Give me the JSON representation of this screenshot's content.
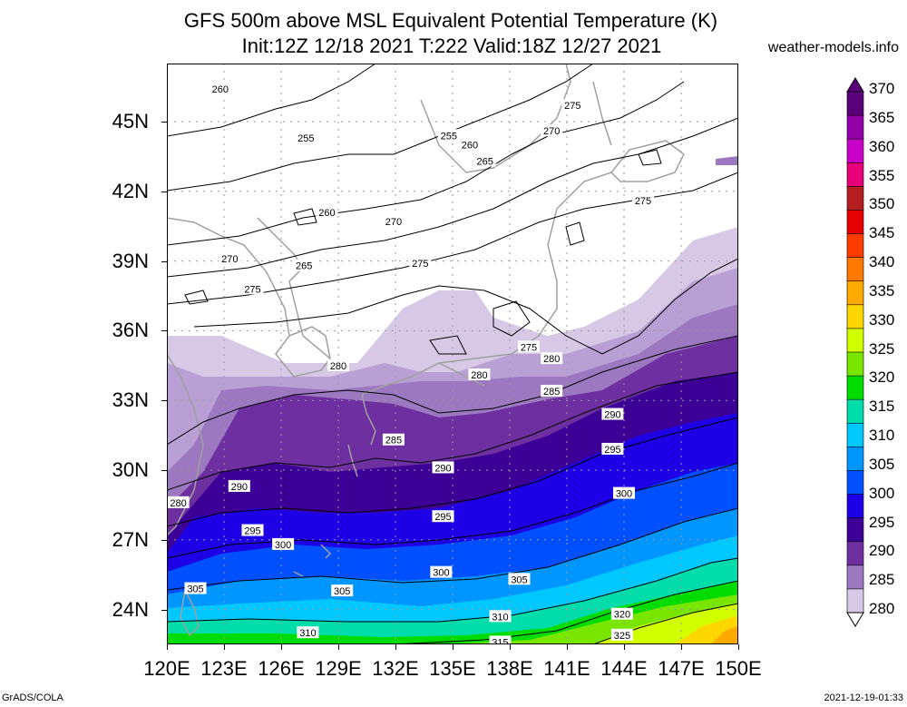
{
  "title": {
    "line1": "GFS 500m above MSL Equivalent Potential Temperature (K)",
    "line2": "Init:12Z 12/18 2021 T:222 Valid:18Z 12/27 2021"
  },
  "site": "weather-models.info",
  "footer": {
    "left": "GrADS/COLA",
    "right": "2021-12-19-01:33"
  },
  "map": {
    "region": "Japan / Northwest Pacific",
    "lon_range": [
      120,
      150
    ],
    "lat_range": [
      22.5,
      47.5
    ],
    "lat_ticks": [
      {
        "v": 45,
        "label": "45N"
      },
      {
        "v": 42,
        "label": "42N"
      },
      {
        "v": 39,
        "label": "39N"
      },
      {
        "v": 36,
        "label": "36N"
      },
      {
        "v": 33,
        "label": "33N"
      },
      {
        "v": 30,
        "label": "30N"
      },
      {
        "v": 27,
        "label": "27N"
      },
      {
        "v": 24,
        "label": "24N"
      }
    ],
    "lon_ticks": [
      {
        "v": 120,
        "label": "120E"
      },
      {
        "v": 123,
        "label": "123E"
      },
      {
        "v": 126,
        "label": "126E"
      },
      {
        "v": 129,
        "label": "129E"
      },
      {
        "v": 132,
        "label": "132E"
      },
      {
        "v": 135,
        "label": "135E"
      },
      {
        "v": 138,
        "label": "138E"
      },
      {
        "v": 141,
        "label": "141E"
      },
      {
        "v": 144,
        "label": "144E"
      },
      {
        "v": 147,
        "label": "147E"
      },
      {
        "v": 150,
        "label": "150E"
      }
    ],
    "contour_labels": [
      {
        "text": "260",
        "lon": 122.8,
        "lat": 46.4
      },
      {
        "text": "255",
        "lon": 127.3,
        "lat": 44.3
      },
      {
        "text": "255",
        "lon": 134.8,
        "lat": 44.4
      },
      {
        "text": "260",
        "lon": 135.9,
        "lat": 44.0
      },
      {
        "text": "265",
        "lon": 136.7,
        "lat": 43.3
      },
      {
        "text": "270",
        "lon": 140.2,
        "lat": 44.6
      },
      {
        "text": "275",
        "lon": 141.3,
        "lat": 45.7
      },
      {
        "text": "275",
        "lon": 145.0,
        "lat": 41.6
      },
      {
        "text": "260",
        "lon": 128.4,
        "lat": 41.1
      },
      {
        "text": "270",
        "lon": 131.9,
        "lat": 40.7
      },
      {
        "text": "275",
        "lon": 133.3,
        "lat": 38.9
      },
      {
        "text": "265",
        "lon": 127.2,
        "lat": 38.8
      },
      {
        "text": "270",
        "lon": 123.3,
        "lat": 39.1
      },
      {
        "text": "275",
        "lon": 124.5,
        "lat": 37.8
      },
      {
        "text": "280",
        "lon": 129.0,
        "lat": 34.5
      },
      {
        "text": "280",
        "lon": 136.4,
        "lat": 34.1
      },
      {
        "text": "275",
        "lon": 139.0,
        "lat": 35.3
      },
      {
        "text": "280",
        "lon": 140.2,
        "lat": 34.8
      },
      {
        "text": "285",
        "lon": 140.2,
        "lat": 33.4
      },
      {
        "text": "290",
        "lon": 143.4,
        "lat": 32.4
      },
      {
        "text": "295",
        "lon": 143.4,
        "lat": 30.9
      },
      {
        "text": "300",
        "lon": 144.0,
        "lat": 29.0
      },
      {
        "text": "285",
        "lon": 131.9,
        "lat": 31.3
      },
      {
        "text": "290",
        "lon": 134.5,
        "lat": 30.1
      },
      {
        "text": "290",
        "lon": 123.8,
        "lat": 29.3
      },
      {
        "text": "295",
        "lon": 134.5,
        "lat": 28.0
      },
      {
        "text": "295",
        "lon": 124.5,
        "lat": 27.4
      },
      {
        "text": "300",
        "lon": 126.1,
        "lat": 26.8
      },
      {
        "text": "300",
        "lon": 134.4,
        "lat": 25.6
      },
      {
        "text": "305",
        "lon": 121.5,
        "lat": 24.9
      },
      {
        "text": "305",
        "lon": 129.2,
        "lat": 24.8
      },
      {
        "text": "305",
        "lon": 138.5,
        "lat": 25.3
      },
      {
        "text": "310",
        "lon": 127.4,
        "lat": 23.0
      },
      {
        "text": "310",
        "lon": 137.5,
        "lat": 23.7
      },
      {
        "text": "320",
        "lon": 143.9,
        "lat": 23.8
      },
      {
        "text": "325",
        "lon": 143.9,
        "lat": 22.9
      },
      {
        "text": "315",
        "lon": 137.5,
        "lat": 22.6
      },
      {
        "text": "280",
        "lon": 120.6,
        "lat": 28.6
      }
    ]
  },
  "colorbar": {
    "levels": [
      {
        "value": "370",
        "color": "#5a007a"
      },
      {
        "value": "365",
        "color": "#9300a8"
      },
      {
        "value": "360",
        "color": "#c800c8"
      },
      {
        "value": "355",
        "color": "#e6007a"
      },
      {
        "value": "350",
        "color": "#b41e1e"
      },
      {
        "value": "345",
        "color": "#e60000"
      },
      {
        "value": "340",
        "color": "#ff3c00"
      },
      {
        "value": "335",
        "color": "#ff7800"
      },
      {
        "value": "330",
        "color": "#ffaa00"
      },
      {
        "value": "325",
        "color": "#ffd700"
      },
      {
        "value": "320",
        "color": "#d2ff00"
      },
      {
        "value": "315",
        "color": "#78e600"
      },
      {
        "value": "310",
        "color": "#00dc00"
      },
      {
        "value": "305",
        "color": "#00dcaa"
      },
      {
        "value": "300",
        "color": "#00c8ff"
      },
      {
        "value": "295",
        "color": "#0096ff"
      },
      {
        "value": "290",
        "color": "#0050ff"
      },
      {
        "value": "285",
        "color": "#1e00e6"
      },
      {
        "value": "280",
        "color": "#3c0096"
      }
    ],
    "extra_low": [
      {
        "value": "",
        "color": "#6e30a0"
      },
      {
        "value": "",
        "color": "#9b78c0"
      },
      {
        "value": "",
        "color": "#d7c8e6"
      }
    ],
    "labels": [
      "370",
      "365",
      "360",
      "355",
      "350",
      "345",
      "340",
      "335",
      "330",
      "325",
      "320",
      "315",
      "310",
      "305",
      "300",
      "295",
      "290",
      "285",
      "280"
    ]
  }
}
